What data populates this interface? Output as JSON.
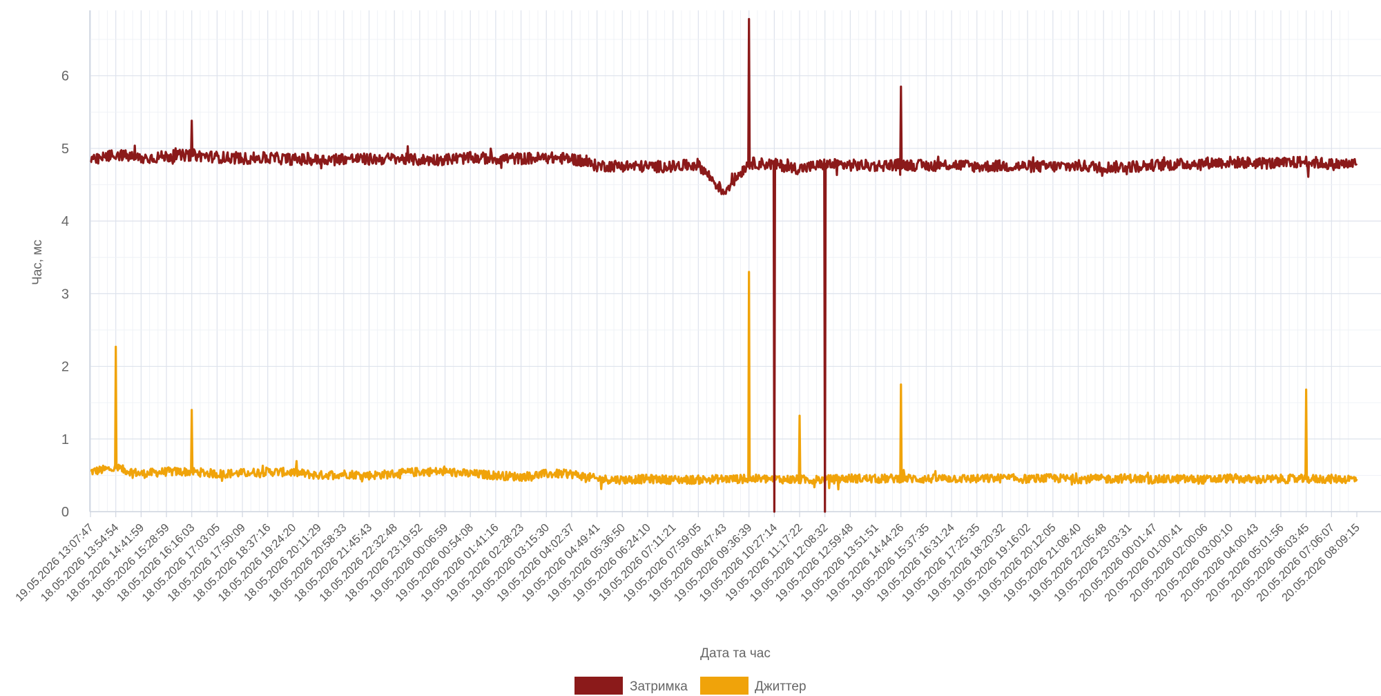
{
  "chart_data": {
    "type": "line",
    "title": "",
    "xlabel": "Дата та час",
    "ylabel": "Час, мс",
    "ylim": [
      0,
      6.9
    ],
    "yticks": [
      0,
      1,
      2,
      3,
      4,
      5,
      6
    ],
    "grid": true,
    "legend_position": "bottom-center",
    "categories": [
      "19.05.2026 13:07:47",
      "18.05.2026 13:54:54",
      "18.05.2026 14:41:59",
      "18.05.2026 15:28:59",
      "18.05.2026 16:16:03",
      "18.05.2026 17:03:05",
      "18.05.2026 17:50:09",
      "18.05.2026 18:37:16",
      "18.05.2026 19:24:20",
      "18.05.2026 20:11:29",
      "18.05.2026 20:58:33",
      "18.05.2026 21:45:43",
      "18.05.2026 22:32:48",
      "18.05.2026 23:19:52",
      "19.05.2026 00:06:59",
      "19.05.2026 00:54:08",
      "19.05.2026 01:41:16",
      "19.05.2026 02:28:23",
      "19.05.2026 03:15:30",
      "19.05.2026 04:02:37",
      "19.05.2026 04:49:41",
      "19.05.2026 05:36:50",
      "19.05.2026 06:24:10",
      "19.05.2026 07:11:21",
      "19.05.2026 07:59:05",
      "19.05.2026 08:47:43",
      "19.05.2026 09:36:39",
      "19.05.2026 10:27:14",
      "19.05.2026 11:17:22",
      "19.05.2026 12:08:32",
      "19.05.2026 12:59:48",
      "19.05.2026 13:51:51",
      "19.05.2026 14:44:26",
      "19.05.2026 15:37:35",
      "19.05.2026 16:31:24",
      "19.05.2026 17:25:35",
      "19.05.2026 18:20:32",
      "19.05.2026 19:16:02",
      "19.05.2026 20:12:05",
      "19.05.2026 21:08:40",
      "19.05.2026 22:05:48",
      "19.05.2026 23:03:31",
      "20.05.2026 00:01:47",
      "20.05.2026 01:00:41",
      "20.05.2026 02:00:06",
      "20.05.2026 03:00:10",
      "20.05.2026 04:00:43",
      "20.05.2026 05:01:56",
      "20.05.2026 06:03:45",
      "20.05.2026 07:06:07",
      "20.05.2026 08:09:15"
    ],
    "series": [
      {
        "name": "Затримка",
        "color": "#8b1a1a",
        "values": [
          4.82,
          4.92,
          4.86,
          4.89,
          4.91,
          4.88,
          4.86,
          4.87,
          4.85,
          4.84,
          4.86,
          4.85,
          4.86,
          4.84,
          4.85,
          4.87,
          4.86,
          4.86,
          4.87,
          4.86,
          4.76,
          4.76,
          4.75,
          4.75,
          4.78,
          4.4,
          4.8,
          4.78,
          4.72,
          4.78,
          4.77,
          4.76,
          4.78,
          4.76,
          4.78,
          4.75,
          4.76,
          4.75,
          4.75,
          4.76,
          4.74,
          4.75,
          4.77,
          4.78,
          4.8,
          4.81,
          4.8,
          4.79,
          4.82,
          4.78,
          4.79
        ]
      },
      {
        "name": "Джиттер",
        "color": "#f0a30a",
        "values": [
          0.55,
          0.6,
          0.52,
          0.55,
          0.55,
          0.52,
          0.53,
          0.55,
          0.54,
          0.5,
          0.52,
          0.5,
          0.52,
          0.55,
          0.55,
          0.52,
          0.5,
          0.48,
          0.52,
          0.52,
          0.45,
          0.44,
          0.45,
          0.44,
          0.44,
          0.45,
          0.45,
          0.45,
          0.44,
          0.44,
          0.46,
          0.45,
          0.46,
          0.45,
          0.46,
          0.45,
          0.46,
          0.45,
          0.46,
          0.45,
          0.45,
          0.46,
          0.44,
          0.45,
          0.44,
          0.46,
          0.44,
          0.45,
          0.45,
          0.45,
          0.45
        ]
      }
    ],
    "annotations": {
      "latency_spikes": [
        {
          "x": "18.05.2026 16:16:03",
          "y": 5.38
        },
        {
          "x": "19.05.2026 09:36:39",
          "y": 6.78
        },
        {
          "x": "19.05.2026 10:27:14",
          "y": 0.0
        },
        {
          "x": "19.05.2026 12:08:32",
          "y": 0.0
        },
        {
          "x": "19.05.2026 14:44:26",
          "y": 5.85
        }
      ],
      "jitter_spikes": [
        {
          "x": "18.05.2026 13:54:54",
          "y": 2.27
        },
        {
          "x": "18.05.2026 16:16:03",
          "y": 1.4
        },
        {
          "x": "19.05.2026 09:36:39",
          "y": 3.3
        },
        {
          "x": "19.05.2026 11:17:22",
          "y": 1.32
        },
        {
          "x": "19.05.2026 14:44:26",
          "y": 1.75
        },
        {
          "x": "20.05.2026 06:03:45",
          "y": 1.68
        }
      ]
    }
  }
}
